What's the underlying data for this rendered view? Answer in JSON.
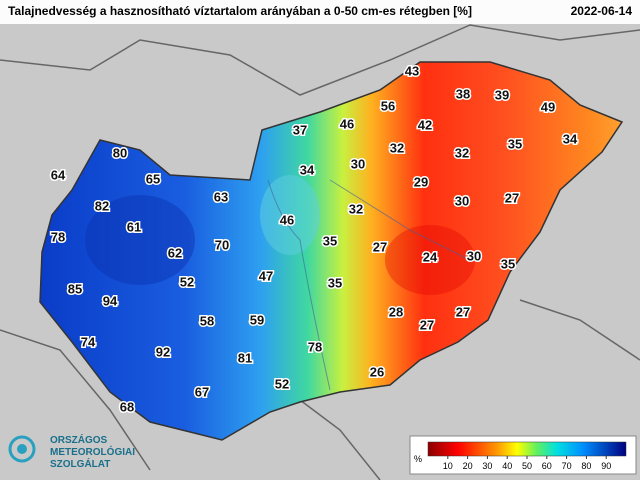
{
  "header": {
    "title": "Talajnedvesség a hasznosítható víztartalom arányában a 0-50 cm-es rétegben [%]",
    "date": "2022-06-14"
  },
  "stations": [
    43,
    38,
    39,
    49,
    56,
    46,
    42,
    37,
    34,
    35,
    32,
    32,
    30,
    80,
    34,
    64,
    65,
    29,
    30,
    27,
    63,
    82,
    32,
    46,
    61,
    78,
    35,
    27,
    70,
    62,
    24,
    30,
    35,
    52,
    47,
    35,
    85,
    94,
    28,
    27,
    58,
    59,
    27,
    74,
    78,
    92,
    81,
    26,
    67,
    52,
    68
  ],
  "legend": {
    "unit": "%",
    "range": [
      0,
      100
    ],
    "ticks": [
      10,
      20,
      30,
      40,
      50,
      60,
      70,
      80,
      90
    ]
  },
  "logo": {
    "lines": [
      "ORSZÁGOS",
      "METEOROLÓGIAI",
      "SZOLGÁLAT"
    ]
  }
}
